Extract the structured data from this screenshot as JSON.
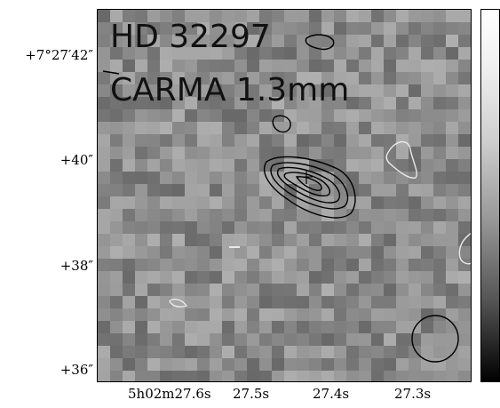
{
  "overlay": {
    "line1": "HD 32297",
    "line2": "CARMA 1.3mm"
  },
  "axes": {
    "y_ticks": [
      "+7°27′42″",
      "+40″",
      "+38″",
      "+36″"
    ],
    "x_ticks": [
      "5h02m27.6s",
      "27.5s",
      "27.4s",
      "27.3s"
    ]
  },
  "colors": {
    "background_gray": "#8f8f8f",
    "contour_dark": "#000000",
    "contour_light": "#e8e8e8"
  }
}
